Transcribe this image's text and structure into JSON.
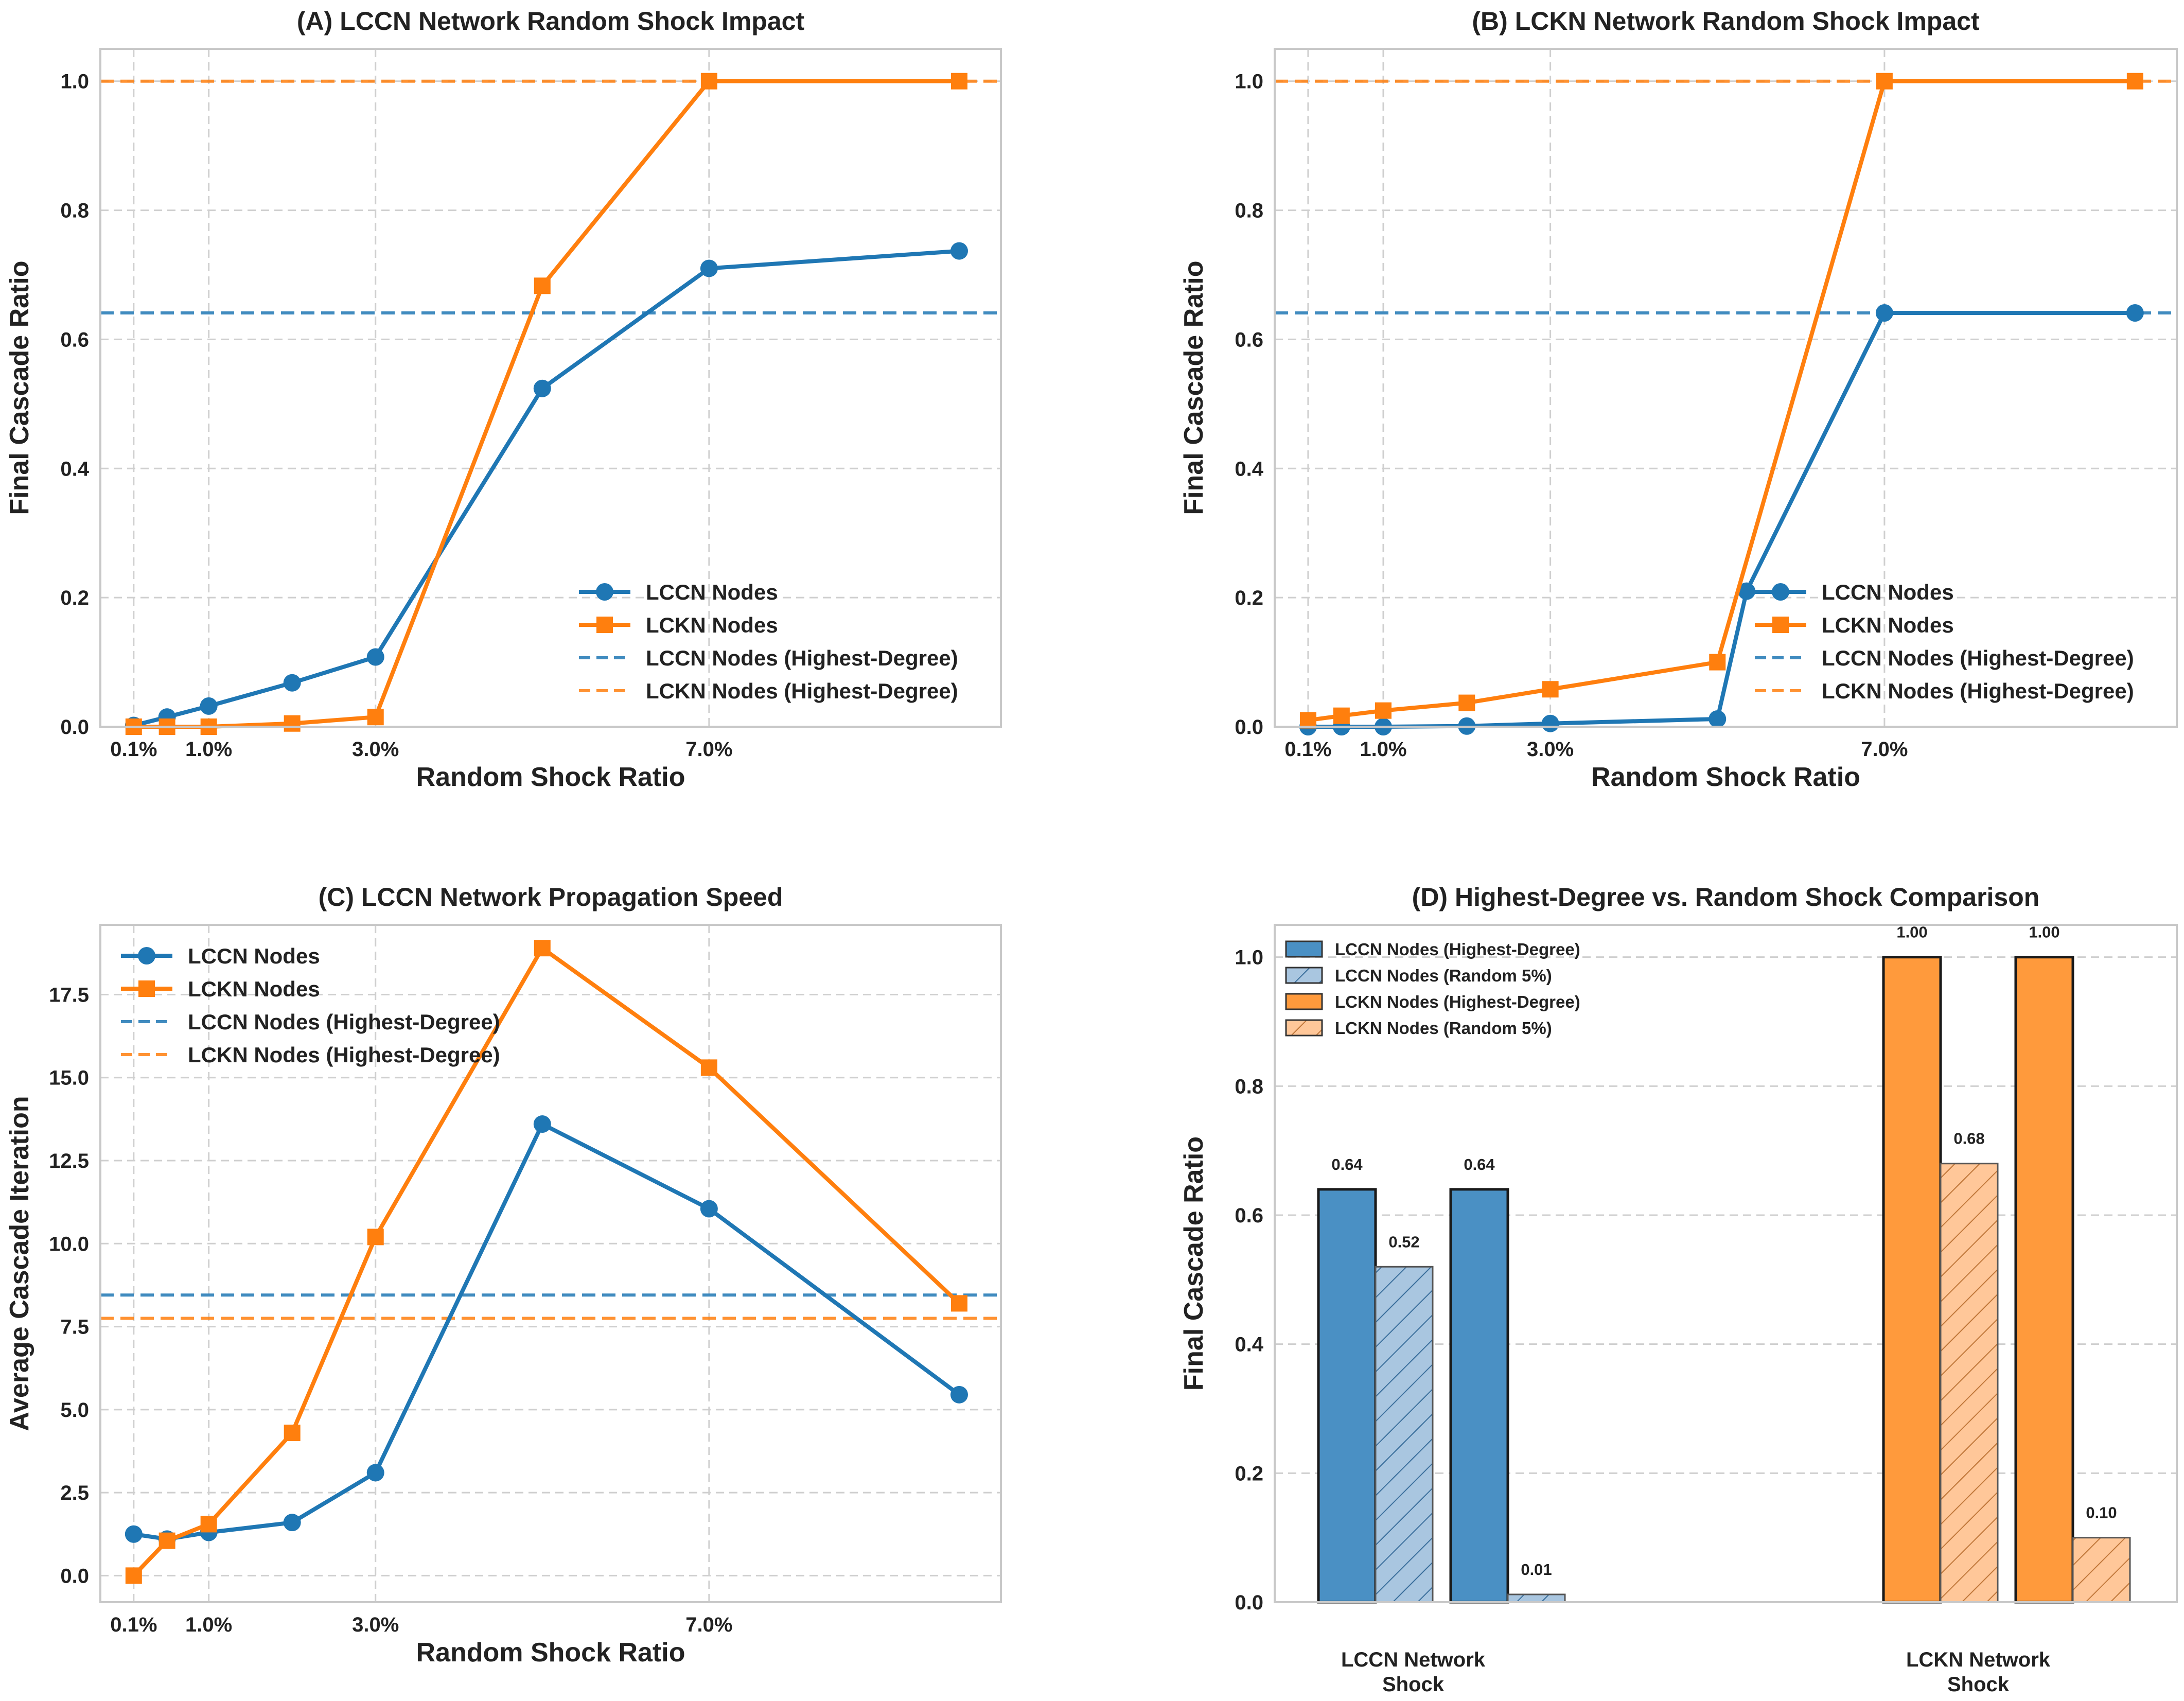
{
  "colors": {
    "lccn": "#1f77b4",
    "lckn": "#ff7f0e",
    "lccn_bar": "#4a90c4",
    "lckn_bar": "#ff9a3c"
  },
  "chart_data": [
    {
      "id": "A",
      "type": "line",
      "title": "(A) LCCN Network Random Shock Impact",
      "xlabel": "Random Shock Ratio",
      "ylabel": "Final Cascade Ratio",
      "x": [
        0.1,
        0.5,
        1.0,
        2.0,
        3.0,
        5.0,
        7.0,
        10.0
      ],
      "xlim": [
        -0.3,
        10.5
      ],
      "ylim": [
        0,
        1.05
      ],
      "xticks": [
        0.1,
        1.0,
        3.0,
        7.0
      ],
      "xtick_labels": [
        "0.1%",
        "1.0%",
        "3.0%",
        "7.0%"
      ],
      "yticks": [
        0.0,
        0.2,
        0.4,
        0.6,
        0.8,
        1.0
      ],
      "ytick_labels": [
        "0.0",
        "0.2",
        "0.4",
        "0.6",
        "0.8",
        "1.0"
      ],
      "series": [
        {
          "name": "LCCN Nodes",
          "color": "#1f77b4",
          "marker": "circle",
          "values": [
            0.002,
            0.015,
            0.032,
            0.068,
            0.108,
            0.524,
            0.71,
            0.737
          ]
        },
        {
          "name": "LCKN Nodes",
          "color": "#ff7f0e",
          "marker": "square",
          "values": [
            0.0,
            0.0,
            0.0,
            0.005,
            0.015,
            0.683,
            1.0,
            1.0
          ]
        }
      ],
      "hlines": [
        {
          "name": "LCCN Nodes (Highest-Degree)",
          "color": "#1f77b4",
          "value": 0.641
        },
        {
          "name": "LCKN Nodes (Highest-Degree)",
          "color": "#ff7f0e",
          "value": 1.0
        }
      ],
      "legend": "lower-right"
    },
    {
      "id": "B",
      "type": "line",
      "title": "(B) LCKN Network Random Shock Impact",
      "xlabel": "Random Shock Ratio",
      "ylabel": "Final Cascade Ratio",
      "x": [
        0.1,
        0.5,
        1.0,
        2.0,
        3.0,
        5.0,
        7.0,
        10.0
      ],
      "xlim": [
        -0.3,
        10.5
      ],
      "ylim": [
        0,
        1.05
      ],
      "xticks": [
        0.1,
        1.0,
        3.0,
        7.0
      ],
      "xtick_labels": [
        "0.1%",
        "1.0%",
        "3.0%",
        "7.0%"
      ],
      "yticks": [
        0.0,
        0.2,
        0.4,
        0.6,
        0.8,
        1.0
      ],
      "ytick_labels": [
        "0.0",
        "0.2",
        "0.4",
        "0.6",
        "0.8",
        "1.0"
      ],
      "series": [
        {
          "name": "LCCN Nodes",
          "color": "#1f77b4",
          "marker": "circle",
          "values": [
            0.0,
            0.0,
            0.0,
            0.001,
            0.005,
            0.012,
            0.641,
            0.641
          ],
          "x": [
            0.1,
            0.5,
            1.0,
            2.0,
            3.0,
            5.0,
            7.0,
            10.0
          ]
        },
        {
          "name": "LCKN Nodes",
          "color": "#ff7f0e",
          "marker": "square",
          "values": [
            0.01,
            0.017,
            0.025,
            0.037,
            0.058,
            0.1,
            1.0,
            1.0
          ]
        }
      ],
      "extra_points": [
        {
          "series": "LCCN Nodes",
          "x": 5.35,
          "y": 0.21
        }
      ],
      "hlines": [
        {
          "name": "LCCN Nodes (Highest-Degree)",
          "color": "#1f77b4",
          "value": 0.641
        },
        {
          "name": "LCKN Nodes (Highest-Degree)",
          "color": "#ff7f0e",
          "value": 1.0
        }
      ],
      "legend": "lower-right"
    },
    {
      "id": "C",
      "type": "line",
      "title": "(C) LCCN Network Propagation Speed",
      "xlabel": "Random Shock Ratio",
      "ylabel": "Average Cascade Iteration",
      "x": [
        0.1,
        0.5,
        1.0,
        2.0,
        3.0,
        5.0,
        7.0,
        10.0
      ],
      "xlim": [
        -0.3,
        10.5
      ],
      "ylim": [
        -0.8,
        19.6
      ],
      "xticks": [
        0.1,
        1.0,
        3.0,
        7.0
      ],
      "xtick_labels": [
        "0.1%",
        "1.0%",
        "3.0%",
        "7.0%"
      ],
      "yticks": [
        0.0,
        2.5,
        5.0,
        7.5,
        10.0,
        12.5,
        15.0,
        17.5
      ],
      "ytick_labels": [
        "0.0",
        "2.5",
        "5.0",
        "7.5",
        "10.0",
        "12.5",
        "15.0",
        "17.5"
      ],
      "series": [
        {
          "name": "LCCN Nodes",
          "color": "#1f77b4",
          "marker": "circle",
          "values": [
            1.25,
            1.1,
            1.3,
            1.6,
            3.1,
            13.6,
            11.05,
            5.45
          ]
        },
        {
          "name": "LCKN Nodes",
          "color": "#ff7f0e",
          "marker": "square",
          "values": [
            0.0,
            1.05,
            1.55,
            4.3,
            10.2,
            18.9,
            15.3,
            8.2
          ]
        }
      ],
      "hlines": [
        {
          "name": "LCCN Nodes (Highest-Degree)",
          "color": "#1f77b4",
          "value": 8.45
        },
        {
          "name": "LCKN Nodes (Highest-Degree)",
          "color": "#ff7f0e",
          "value": 7.75
        }
      ],
      "legend": "upper-left"
    },
    {
      "id": "D",
      "type": "bar",
      "title": "(D) Highest-Degree vs. Random Shock Comparison",
      "ylabel": "Final Cascade Ratio",
      "ylim": [
        0,
        1.05
      ],
      "yticks": [
        0.0,
        0.2,
        0.4,
        0.6,
        0.8,
        1.0
      ],
      "ytick_labels": [
        "0.0",
        "0.2",
        "0.4",
        "0.6",
        "0.8",
        "1.0"
      ],
      "categories": [
        "LCCN Network Shock",
        "LCKN Network Shock"
      ],
      "category_lines": [
        [
          "LCCN Network",
          "Shock"
        ],
        [
          "LCKN Network",
          "Shock"
        ]
      ],
      "bars": [
        {
          "group": 0,
          "slot": 0,
          "series": "LCCN Nodes (Highest-Degree)",
          "value": 0.64,
          "label": "0.64"
        },
        {
          "group": 0,
          "slot": 1,
          "series": "LCCN Nodes (Random 5%)",
          "value": 0.52,
          "label": "0.52"
        },
        {
          "group": 0,
          "slot": 2,
          "series": "LCCN Nodes (Highest-Degree)",
          "value": 0.64,
          "label": "0.64"
        },
        {
          "group": 0,
          "slot": 3,
          "series": "LCCN Nodes (Random 5%)",
          "value": 0.012,
          "label": "0.01"
        },
        {
          "group": 1,
          "slot": 0,
          "series": "LCKN Nodes (Highest-Degree)",
          "value": 1.0,
          "label": "1.00"
        },
        {
          "group": 1,
          "slot": 1,
          "series": "LCKN Nodes (Random 5%)",
          "value": 0.68,
          "label": "0.68"
        },
        {
          "group": 1,
          "slot": 2,
          "series": "LCKN Nodes (Highest-Degree)",
          "value": 1.0,
          "label": "1.00"
        },
        {
          "group": 1,
          "slot": 3,
          "series": "LCKN Nodes (Random 5%)",
          "value": 0.1,
          "label": "0.10"
        }
      ],
      "legend_entries": [
        {
          "name": "LCCN Nodes (Highest-Degree)",
          "color": "#4a90c4",
          "hatch": false
        },
        {
          "name": "LCCN Nodes (Random 5%)",
          "color": "#4a90c4",
          "hatch": true
        },
        {
          "name": "LCKN Nodes (Highest-Degree)",
          "color": "#ff9a3c",
          "hatch": false
        },
        {
          "name": "LCKN Nodes (Random 5%)",
          "color": "#ff9a3c",
          "hatch": true
        }
      ],
      "legend": "upper-left"
    }
  ]
}
